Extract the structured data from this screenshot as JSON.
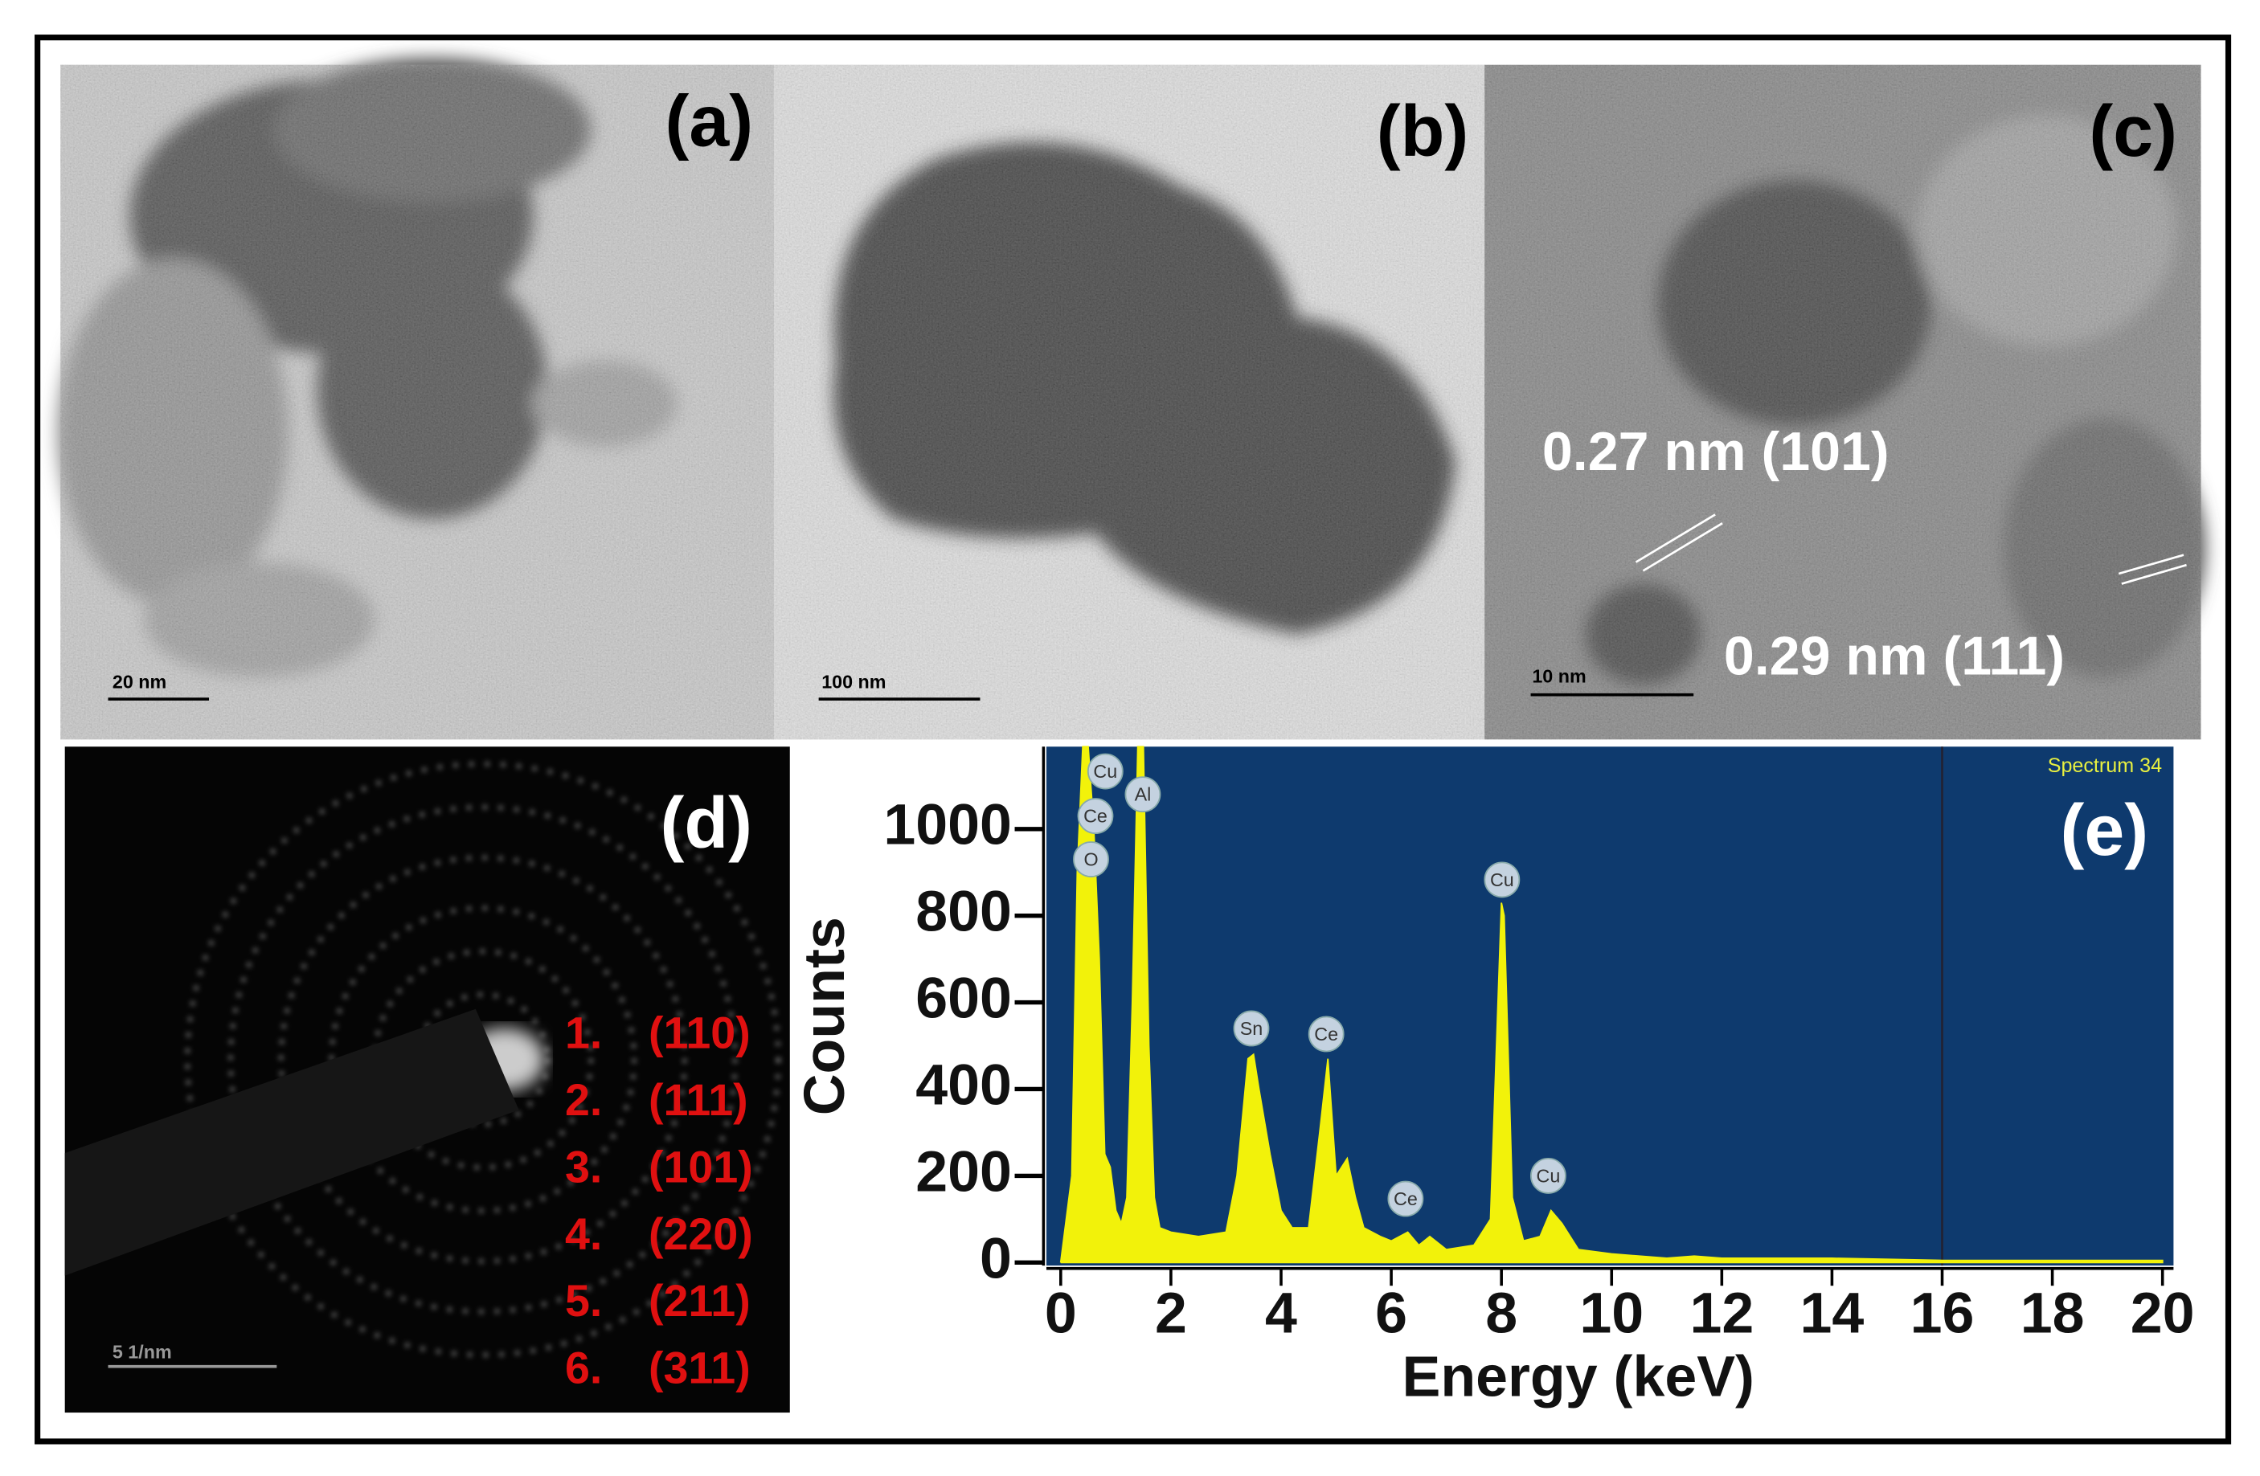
{
  "panels": [
    {
      "label": "(a)",
      "scale_bar": "20 nm"
    },
    {
      "label": "(b)",
      "scale_bar": "100 nm"
    },
    {
      "label": "(c)",
      "scale_bar": "10 nm",
      "annotations": [
        "0.27 nm (101)",
        "0.29 nm (111)"
      ]
    },
    {
      "label": "(d)",
      "scale_bar": "5 1/nm",
      "rings": [
        {
          "index": "1.",
          "plane": "(110)"
        },
        {
          "index": "2.",
          "plane": "(111)"
        },
        {
          "index": "3.",
          "plane": "(101)"
        },
        {
          "index": "4.",
          "plane": "(220)"
        },
        {
          "index": "5.",
          "plane": "(211)"
        },
        {
          "index": "6.",
          "plane": "(311)"
        }
      ]
    },
    {
      "label": "(e)"
    }
  ],
  "chart_data": {
    "type": "area",
    "spectrum_name": "Spectrum 34",
    "x_label": "Energy (keV)",
    "y_label": "Counts",
    "color": "#f2f20a",
    "background": "#0e3a6e",
    "x": [
      0,
      0.2,
      0.3,
      0.4,
      0.5,
      0.6,
      0.7,
      0.8,
      0.9,
      1.0,
      1.1,
      1.2,
      1.3,
      1.4,
      1.5,
      1.6,
      1.7,
      1.8,
      2.0,
      2.5,
      3.0,
      3.2,
      3.4,
      3.5,
      3.6,
      3.8,
      4.0,
      4.2,
      4.5,
      4.7,
      4.85,
      5.0,
      5.2,
      5.35,
      5.5,
      5.8,
      6.0,
      6.3,
      6.5,
      6.7,
      7.0,
      7.5,
      7.8,
      8.0,
      8.05,
      8.2,
      8.4,
      8.7,
      8.9,
      9.1,
      9.4,
      10,
      11,
      11.5,
      12,
      14,
      16,
      18,
      20
    ],
    "values": [
      0,
      200,
      900,
      1190,
      1190,
      1000,
      700,
      250,
      220,
      120,
      90,
      150,
      600,
      1190,
      1190,
      500,
      150,
      80,
      70,
      60,
      70,
      200,
      470,
      480,
      400,
      250,
      120,
      80,
      80,
      300,
      470,
      200,
      240,
      150,
      80,
      60,
      50,
      70,
      40,
      60,
      30,
      40,
      100,
      830,
      800,
      150,
      50,
      60,
      120,
      90,
      30,
      20,
      10,
      15,
      10,
      10,
      5,
      5,
      5
    ],
    "peaks": [
      {
        "label": "Cu",
        "energy": 0.81,
        "counts": 1133
      },
      {
        "label": "Ce",
        "energy": 0.63,
        "counts": 1030
      },
      {
        "label": "O",
        "energy": 0.55,
        "counts": 930
      },
      {
        "label": "Al",
        "energy": 1.49,
        "counts": 1080
      },
      {
        "label": "Sn",
        "energy": 3.46,
        "counts": 540
      },
      {
        "label": "Ce",
        "energy": 4.82,
        "counts": 527
      },
      {
        "label": "Ce",
        "energy": 6.26,
        "counts": 147
      },
      {
        "label": "Cu",
        "energy": 8.01,
        "counts": 883
      },
      {
        "label": "Cu",
        "energy": 8.85,
        "counts": 200
      }
    ],
    "cursor_energy": 16,
    "xlim": [
      -0.26,
      20.2
    ],
    "ylim": [
      -7,
      1190
    ],
    "xticks": [
      0,
      2,
      4,
      6,
      8,
      10,
      12,
      14,
      16,
      18,
      20
    ],
    "yticks": [
      0,
      200,
      400,
      600,
      800,
      1000
    ]
  }
}
